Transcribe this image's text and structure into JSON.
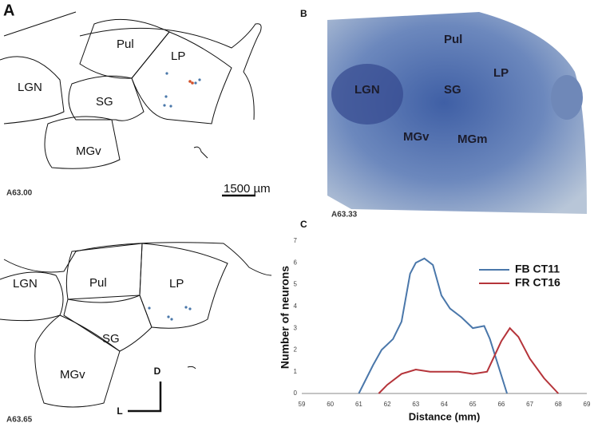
{
  "panel_labels": [
    "A",
    "B",
    "C"
  ],
  "panel_a": {
    "top": {
      "regions": [
        "LGN",
        "Pul",
        "LP",
        "SG",
        "MGv"
      ],
      "section": "A63.00",
      "scale_bar": "1500 µm"
    },
    "bottom": {
      "regions": [
        "LGN",
        "Pul",
        "LP",
        "SG",
        "MGv"
      ],
      "section": "A63.65",
      "axes": [
        "D",
        "L"
      ]
    }
  },
  "panel_b": {
    "regions": [
      "Pul",
      "LP",
      "LGN",
      "SG",
      "MGv",
      "MGm"
    ],
    "section": "A63.33"
  },
  "chart_data": {
    "type": "line",
    "xlabel": "Distance (mm)",
    "ylabel": "Number of neurons",
    "xlim": [
      59,
      69
    ],
    "xticks": [
      59,
      60,
      61,
      62,
      63,
      64,
      65,
      66,
      67,
      68,
      69
    ],
    "ylim": [
      0,
      7
    ],
    "yticks": [
      0,
      1,
      2,
      3,
      4,
      5,
      6,
      7
    ],
    "legend": "upper right",
    "series": [
      {
        "name": "FB CT11",
        "color": "#4a77aa",
        "x": [
          61.0,
          61.5,
          61.8,
          62.2,
          62.5,
          62.8,
          63.0,
          63.3,
          63.6,
          63.9,
          64.2,
          64.6,
          65.0,
          65.4,
          65.6,
          66.2
        ],
        "values": [
          0,
          1.3,
          2.0,
          2.5,
          3.3,
          5.5,
          6.0,
          6.2,
          5.9,
          4.5,
          3.9,
          3.5,
          3.0,
          3.1,
          2.5,
          0
        ]
      },
      {
        "name": "FR CT16",
        "color": "#b5343a",
        "x": [
          61.7,
          62.0,
          62.5,
          63.0,
          63.5,
          64.0,
          64.5,
          65.0,
          65.5,
          66.0,
          66.3,
          66.6,
          67.0,
          67.5,
          68.0
        ],
        "values": [
          0,
          0.4,
          0.9,
          1.1,
          1.0,
          1.0,
          1.0,
          0.9,
          1.0,
          2.4,
          3.0,
          2.6,
          1.6,
          0.7,
          0
        ]
      }
    ]
  }
}
